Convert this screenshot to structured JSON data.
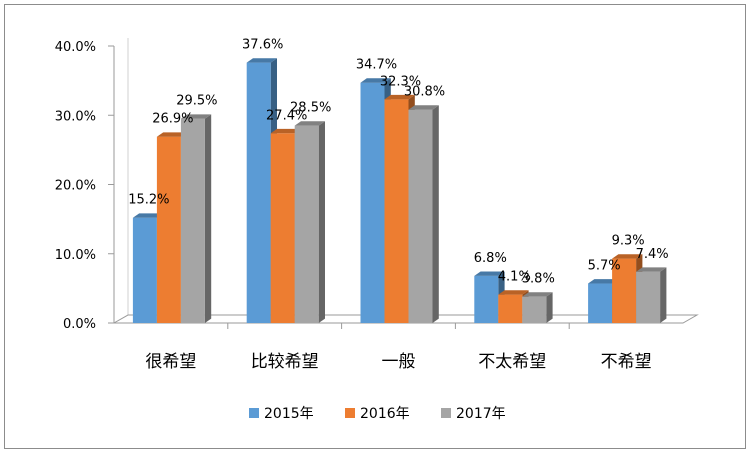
{
  "chart_data": {
    "type": "bar",
    "categories": [
      "很希望",
      "比较希望",
      "一般",
      "不太希望",
      "不希望"
    ],
    "series": [
      {
        "name": "2015年",
        "values": [
          15.2,
          37.6,
          34.7,
          6.8,
          5.7
        ],
        "color": "#5b9bd5"
      },
      {
        "name": "2016年",
        "values": [
          26.9,
          27.4,
          32.3,
          4.1,
          9.3
        ],
        "color": "#ed7d31"
      },
      {
        "name": "2017年",
        "values": [
          29.5,
          28.5,
          30.8,
          3.8,
          7.4
        ],
        "color": "#a5a5a5"
      }
    ],
    "data_labels": [
      [
        "15.2%",
        "37.6%",
        "34.7%",
        "6.8%",
        "5.7%"
      ],
      [
        "26.9%",
        "27.4%",
        "32.3%",
        "4.1%",
        "9.3%"
      ],
      [
        "29.5%",
        "28.5%",
        "30.8%",
        "3.8%",
        "7.4%"
      ]
    ],
    "ylim": [
      0,
      40
    ],
    "yticks": [
      0,
      10,
      20,
      30,
      40
    ],
    "ytick_labels": [
      "0.0%",
      "10.0%",
      "20.0%",
      "30.0%",
      "40.0%"
    ],
    "legend_position": "bottom",
    "grid": false,
    "style": "3d-clustered-column"
  }
}
